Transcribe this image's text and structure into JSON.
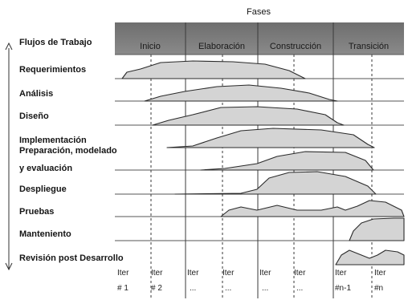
{
  "header": {
    "phases_title": "Fases",
    "workflows_title": "Flujos de Trabajo"
  },
  "phases": [
    "Inicio",
    "Elaboración",
    "Construcción",
    "Transición"
  ],
  "workflows": [
    "Requerimientos",
    "Análisis",
    "Diseño",
    "Implementación",
    "Preparación, modelado",
    "y  evaluación",
    "Despliegue",
    "Pruebas",
    "Manteniento",
    "Revisión post Desarrollo"
  ],
  "iterations": {
    "top": [
      "Iter",
      "Iter",
      "Iter",
      "Iter",
      "Iter",
      "Iter",
      "Iter",
      "Iter"
    ],
    "bottom": [
      "# 1",
      "# 2",
      "...",
      "...",
      "...",
      "...",
      "#n-1",
      "#n"
    ]
  },
  "colors": {
    "phase_header": "#7b7b7b",
    "phase_header_dark": "#5f5f5f",
    "curve_fill": "#d4d4d4",
    "grid_line": "#555555"
  }
}
